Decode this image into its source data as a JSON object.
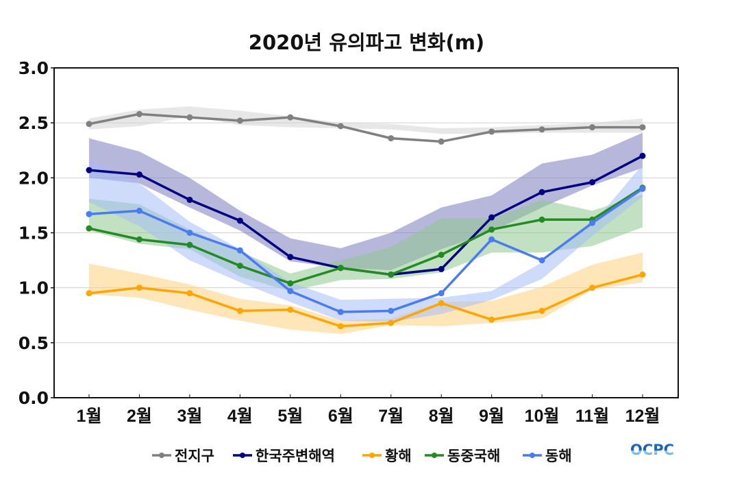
{
  "chart_data": {
    "type": "line",
    "title": "2020년 유의파고 변화(m)",
    "xlabel": "",
    "ylabel": "",
    "categories": [
      "1월",
      "2월",
      "3월",
      "4월",
      "5월",
      "6월",
      "7월",
      "8월",
      "9월",
      "10월",
      "11월",
      "12월"
    ],
    "ylim": [
      0.0,
      3.0
    ],
    "yticks": [
      "0.0",
      "0.5",
      "1.0",
      "1.5",
      "2.0",
      "2.5",
      "3.0"
    ],
    "grid": true,
    "legend_position": "bottom",
    "series": [
      {
        "name": "전지구",
        "color": "#808080",
        "band_color": "#d3d3d3",
        "values": [
          2.49,
          2.58,
          2.55,
          2.52,
          2.55,
          2.47,
          2.36,
          2.33,
          2.42,
          2.44,
          2.46,
          2.46
        ],
        "band_upper": [
          2.54,
          2.62,
          2.65,
          2.61,
          2.56,
          2.5,
          2.49,
          2.45,
          2.46,
          2.48,
          2.5,
          2.54
        ],
        "band_lower": [
          2.44,
          2.47,
          2.56,
          2.48,
          2.46,
          2.45,
          2.44,
          2.4,
          2.4,
          2.41,
          2.41,
          2.41
        ]
      },
      {
        "name": "한국주변해역",
        "color": "#000080",
        "band_color": "#7b7bbd",
        "values": [
          2.07,
          2.03,
          1.8,
          1.61,
          1.28,
          1.18,
          1.12,
          1.17,
          1.64,
          1.87,
          1.96,
          2.2
        ],
        "band_upper": [
          2.36,
          2.24,
          2.0,
          1.7,
          1.45,
          1.36,
          1.5,
          1.73,
          1.84,
          2.13,
          2.21,
          2.41
        ],
        "band_lower": [
          2.0,
          1.95,
          1.73,
          1.52,
          1.24,
          1.18,
          1.16,
          1.35,
          1.51,
          1.73,
          1.93,
          2.09
        ]
      },
      {
        "name": "황해",
        "color": "#ffa500",
        "band_color": "#ffd27f",
        "values": [
          0.95,
          1.0,
          0.95,
          0.79,
          0.8,
          0.65,
          0.68,
          0.86,
          0.71,
          0.79,
          1.0,
          1.12
        ],
        "band_upper": [
          1.22,
          1.13,
          1.03,
          0.9,
          0.84,
          0.7,
          0.72,
          0.87,
          0.88,
          1.01,
          1.21,
          1.32
        ],
        "band_lower": [
          0.94,
          0.91,
          0.8,
          0.7,
          0.62,
          0.58,
          0.66,
          0.65,
          0.68,
          0.72,
          0.98,
          1.05
        ]
      },
      {
        "name": "동중국해",
        "color": "#228b22",
        "band_color": "#8fc88f",
        "values": [
          1.54,
          1.44,
          1.39,
          1.2,
          1.04,
          1.18,
          1.12,
          1.3,
          1.53,
          1.62,
          1.62,
          1.91
        ],
        "band_upper": [
          1.81,
          1.76,
          1.53,
          1.33,
          1.13,
          1.25,
          1.37,
          1.63,
          1.63,
          1.8,
          1.7,
          1.85
        ],
        "band_lower": [
          1.52,
          1.4,
          1.35,
          1.1,
          0.97,
          1.07,
          1.08,
          1.14,
          1.32,
          1.32,
          1.38,
          1.55
        ]
      },
      {
        "name": "동해",
        "color": "#4a7cf0",
        "band_color": "#a6bdf5",
        "values": [
          1.67,
          1.7,
          1.5,
          1.34,
          0.97,
          0.78,
          0.79,
          0.95,
          1.44,
          1.25,
          1.59,
          1.9
        ],
        "band_upper": [
          2.16,
          1.95,
          1.6,
          1.35,
          1.05,
          0.89,
          0.9,
          0.91,
          0.97,
          1.23,
          1.58,
          2.12
        ],
        "band_lower": [
          1.78,
          1.56,
          1.25,
          1.05,
          0.87,
          0.7,
          0.69,
          0.76,
          0.89,
          1.08,
          1.47,
          1.83
        ]
      }
    ]
  },
  "logo": {
    "text": "OCPC"
  }
}
